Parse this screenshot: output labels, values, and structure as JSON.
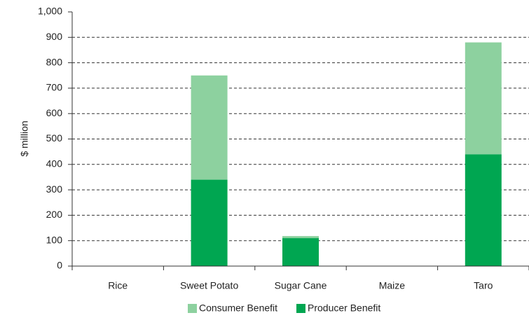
{
  "chart_data": {
    "type": "stacked_bar",
    "y_label": "$ million",
    "categories": [
      "Rice",
      "Sweet Potato",
      "Sugar Cane",
      "Maize",
      "Taro"
    ],
    "series": [
      {
        "name": "Producer Benefit",
        "color": "#00a651",
        "values": [
          0,
          340,
          110,
          0,
          440
        ]
      },
      {
        "name": "Consumer Benefit",
        "color": "#8dd19f",
        "values": [
          0,
          410,
          8,
          0,
          440
        ]
      }
    ],
    "ylim": [
      0,
      1000
    ],
    "yticks": [
      0,
      100,
      200,
      300,
      400,
      500,
      600,
      700,
      800,
      900,
      {
        "value": 1000,
        "label": "1,000"
      }
    ],
    "grid": true
  }
}
